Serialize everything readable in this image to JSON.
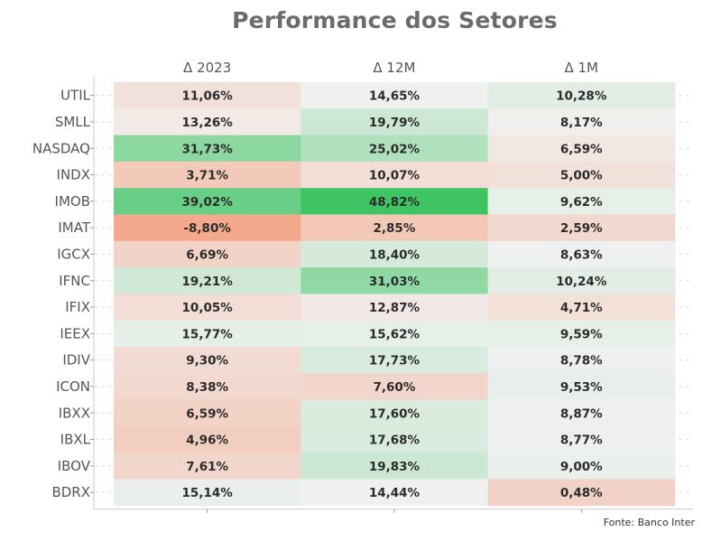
{
  "chart_data": {
    "type": "heatmap",
    "title": "Performance dos Setores",
    "columns": [
      "Δ 2023",
      "Δ 12M",
      "Δ 1M"
    ],
    "rows": [
      "UTIL",
      "SMLL",
      "NASDAQ",
      "INDX",
      "IMOB",
      "IMAT",
      "IGCX",
      "IFNC",
      "IFIX",
      "IEEX",
      "IDIV",
      "ICON",
      "IBXX",
      "IBXL",
      "IBOV",
      "BDRX"
    ],
    "values": [
      [
        11.06,
        14.65,
        10.28
      ],
      [
        13.26,
        19.79,
        8.17
      ],
      [
        31.73,
        25.02,
        6.59
      ],
      [
        3.71,
        10.07,
        5.0
      ],
      [
        39.02,
        48.82,
        9.62
      ],
      [
        -8.8,
        2.85,
        2.59
      ],
      [
        6.69,
        18.4,
        8.63
      ],
      [
        19.21,
        31.03,
        10.24
      ],
      [
        10.05,
        12.87,
        4.71
      ],
      [
        15.77,
        15.62,
        9.59
      ],
      [
        9.3,
        17.73,
        8.78
      ],
      [
        8.38,
        7.6,
        9.53
      ],
      [
        6.59,
        17.6,
        8.87
      ],
      [
        4.96,
        17.68,
        8.77
      ],
      [
        7.61,
        19.83,
        9.0
      ],
      [
        15.14,
        14.44,
        0.48
      ]
    ],
    "labels": [
      [
        "11,06%",
        "14,65%",
        "10,28%"
      ],
      [
        "13,26%",
        "19,79%",
        "8,17%"
      ],
      [
        "31,73%",
        "25,02%",
        "6,59%"
      ],
      [
        "3,71%",
        "10,07%",
        "5,00%"
      ],
      [
        "39,02%",
        "48,82%",
        "9,62%"
      ],
      [
        "-8,80%",
        "2,85%",
        "2,59%"
      ],
      [
        "6,69%",
        "18,40%",
        "8,63%"
      ],
      [
        "19,21%",
        "31,03%",
        "10,24%"
      ],
      [
        "10,05%",
        "12,87%",
        "4,71%"
      ],
      [
        "15,77%",
        "15,62%",
        "9,59%"
      ],
      [
        "9,30%",
        "17,73%",
        "8,78%"
      ],
      [
        "8,38%",
        "7,60%",
        "9,53%"
      ],
      [
        "6,59%",
        "17,60%",
        "8,87%"
      ],
      [
        "4,96%",
        "17,68%",
        "8,77%"
      ],
      [
        "7,61%",
        "19,83%",
        "9,00%"
      ],
      [
        "15,14%",
        "14,44%",
        "0,48%"
      ]
    ],
    "column_references": [
      14.5,
      14.5,
      8.5
    ],
    "colors": {
      "positive_max": "#3ec462",
      "negative_max": "#f4a98c",
      "neutral": "#f1f1f1",
      "label_text": "#2b2b2b",
      "axis_text": "#555555",
      "title_text": "#6b6b6b",
      "grid": "#c9c9c9"
    },
    "grid": true,
    "legend": "none"
  },
  "source": "Fonte: Banco Inter"
}
